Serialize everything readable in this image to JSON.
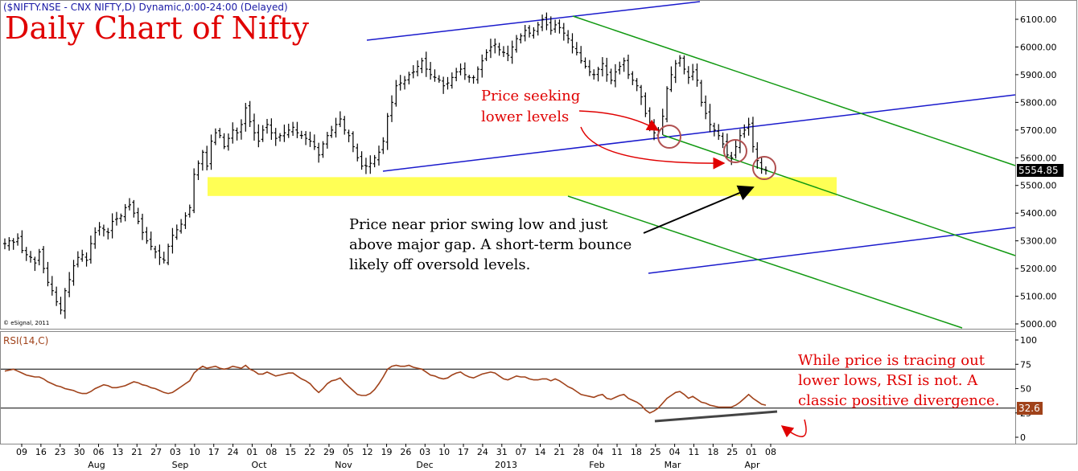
{
  "header": {
    "symbol_line": "($NIFTY.NSE - CNX NIFTY,D) Dynamic,0:00-24:00 (Delayed)",
    "title": "Daily Chart of Nifty",
    "copyright": "© eSignal, 2011"
  },
  "annotations": {
    "price_seeking": [
      "Price seeking",
      "lower levels"
    ],
    "price_near": [
      "Price near prior swing low and just",
      "above major gap. A short-term bounce",
      "likely off oversold levels."
    ],
    "divergence": [
      "While price is tracing out",
      "lower lows, RSI is not. A",
      "classic positive divergence."
    ]
  },
  "colors": {
    "header_text": "#1a1aa6",
    "title": "#e00000",
    "bars": "#000000",
    "channel_blue": "#1a1acc",
    "channel_green": "#119911",
    "gap_zone": "#ffff55",
    "rsi_line": "#a0421a",
    "circle": "#b05050",
    "arrow_red": "#e00000"
  },
  "chart_data": [
    {
      "type": "bar",
      "subtype": "ohlc-price",
      "ylim": [
        4990,
        6140
      ],
      "y_ticks": [
        "6100.00",
        "6000.00",
        "5900.00",
        "5800.00",
        "5700.00",
        "5600.00",
        "5500.00",
        "5400.00",
        "5300.00",
        "5200.00",
        "5100.00",
        "5000.00"
      ],
      "last_value_label": "5554.85",
      "x_day_labels": [
        "09",
        "16",
        "23",
        "30",
        "06",
        "13",
        "21",
        "27",
        "03",
        "10",
        "17",
        "24",
        "01",
        "08",
        "15",
        "22",
        "29",
        "05",
        "12",
        "19",
        "26",
        "03",
        "10",
        "17",
        "24",
        "31",
        "07",
        "14",
        "21",
        "28",
        "04",
        "11",
        "18",
        "25",
        "04",
        "11",
        "18",
        "25",
        "01",
        "08"
      ],
      "x_month_labels": [
        "Aug",
        "Sep",
        "Oct",
        "Nov",
        "Dec",
        "2013",
        "Feb",
        "Mar",
        "Apr"
      ],
      "closes": [
        5290,
        5300,
        5295,
        5310,
        5265,
        5250,
        5240,
        5220,
        5260,
        5200,
        5150,
        5120,
        5080,
        5050,
        5120,
        5160,
        5210,
        5240,
        5250,
        5230,
        5290,
        5330,
        5350,
        5340,
        5330,
        5370,
        5380,
        5390,
        5420,
        5430,
        5400,
        5370,
        5330,
        5300,
        5280,
        5260,
        5240,
        5230,
        5280,
        5320,
        5340,
        5360,
        5390,
        5420,
        5540,
        5580,
        5620,
        5570,
        5660,
        5690,
        5680,
        5640,
        5670,
        5700,
        5690,
        5720,
        5780,
        5730,
        5690,
        5660,
        5700,
        5720,
        5690,
        5670,
        5680,
        5690,
        5700,
        5710,
        5690,
        5680,
        5670,
        5660,
        5640,
        5610,
        5650,
        5680,
        5700,
        5720,
        5740,
        5700,
        5680,
        5640,
        5600,
        5570,
        5570,
        5580,
        5600,
        5620,
        5660,
        5750,
        5800,
        5860,
        5870,
        5880,
        5900,
        5910,
        5930,
        5950,
        5920,
        5900,
        5890,
        5880,
        5860,
        5870,
        5890,
        5910,
        5920,
        5900,
        5890,
        5890,
        5920,
        5950,
        5980,
        6000,
        6010,
        5990,
        5980,
        5970,
        6000,
        6030,
        6040,
        6060,
        6050,
        6060,
        6080,
        6100,
        6080,
        6060,
        6080,
        6070,
        6050,
        6030,
        6000,
        5980,
        5950,
        5930,
        5910,
        5900,
        5920,
        5940,
        5900,
        5880,
        5910,
        5930,
        5950,
        5900,
        5880,
        5860,
        5820,
        5760,
        5720,
        5690,
        5700,
        5750,
        5850,
        5900,
        5940,
        5960,
        5920,
        5890,
        5910,
        5880,
        5800,
        5760,
        5720,
        5700,
        5680,
        5650,
        5610,
        5600,
        5640,
        5680,
        5700,
        5720,
        5640,
        5590,
        5560,
        5555
      ],
      "channel_lines": [
        {
          "color": "blue",
          "label": "upper-channel"
        },
        {
          "color": "blue",
          "label": "middle-channel"
        },
        {
          "color": "blue",
          "label": "lower-channel"
        },
        {
          "color": "green",
          "label": "upper-channel"
        },
        {
          "color": "green",
          "label": "middle-channel"
        },
        {
          "color": "green",
          "label": "lower-channel"
        }
      ],
      "gap_zone": [
        5462,
        5530
      ]
    },
    {
      "type": "line",
      "title": "RSI(14,C)",
      "ylim": [
        0,
        100
      ],
      "y_ticks": [
        "100",
        "75",
        "50",
        "25",
        "0"
      ],
      "reference_levels": [
        70,
        30
      ],
      "last_value_label": "32.6",
      "values": [
        68,
        69,
        70,
        68,
        66,
        64,
        63,
        62,
        62,
        60,
        57,
        55,
        53,
        52,
        50,
        49,
        48,
        46,
        45,
        45,
        47,
        50,
        52,
        54,
        53,
        51,
        51,
        52,
        53,
        55,
        57,
        56,
        54,
        53,
        51,
        50,
        48,
        46,
        45,
        46,
        49,
        52,
        55,
        58,
        66,
        70,
        73,
        71,
        72,
        73,
        71,
        70,
        71,
        73,
        72,
        71,
        74,
        70,
        68,
        65,
        65,
        67,
        65,
        63,
        64,
        65,
        66,
        66,
        63,
        60,
        58,
        55,
        50,
        46,
        50,
        55,
        58,
        59,
        61,
        56,
        52,
        48,
        44,
        43,
        43,
        45,
        49,
        55,
        62,
        70,
        73,
        74,
        73,
        73,
        74,
        72,
        71,
        70,
        67,
        64,
        63,
        61,
        60,
        61,
        64,
        66,
        67,
        64,
        62,
        61,
        63,
        65,
        66,
        67,
        66,
        63,
        60,
        59,
        61,
        63,
        62,
        62,
        60,
        59,
        59,
        60,
        60,
        58,
        60,
        58,
        55,
        52,
        50,
        47,
        44,
        43,
        42,
        41,
        43,
        44,
        40,
        39,
        41,
        43,
        44,
        40,
        38,
        36,
        33,
        28,
        25,
        27,
        30,
        35,
        40,
        43,
        46,
        47,
        44,
        40,
        42,
        39,
        36,
        35,
        33,
        32,
        31,
        31,
        31,
        31,
        33,
        36,
        40,
        44,
        40,
        37,
        34,
        33
      ]
    }
  ]
}
